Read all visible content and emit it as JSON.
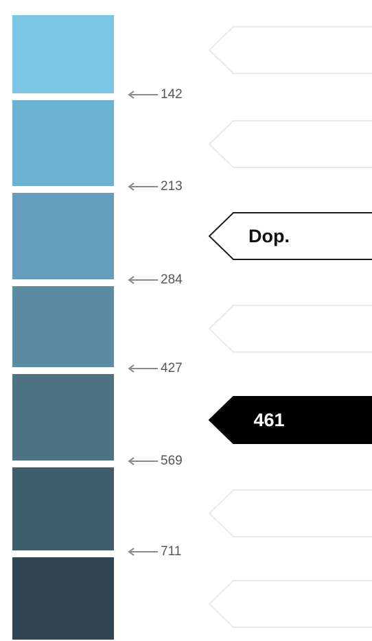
{
  "scale": {
    "bands": [
      {
        "color": "#7BC6E5"
      },
      {
        "color": "#6BB1D2"
      },
      {
        "color": "#649EBC"
      },
      {
        "color": "#5A8BA1"
      },
      {
        "color": "#4D7384"
      },
      {
        "color": "#3E5E6D"
      },
      {
        "color": "#304753"
      }
    ],
    "boundaries": [
      "142",
      "213",
      "284",
      "427",
      "569",
      "711"
    ]
  },
  "tags": [
    {
      "label": "",
      "style": "faint"
    },
    {
      "label": "",
      "style": "faint"
    },
    {
      "label": "Dop.",
      "style": "outline"
    },
    {
      "label": "",
      "style": "faint"
    },
    {
      "label": "461",
      "style": "filled"
    },
    {
      "label": "",
      "style": "faint"
    },
    {
      "label": "",
      "style": "faint"
    }
  ],
  "colors": {
    "arrow": "#8A8A8A",
    "faint_outline": "#E9E9E9",
    "outline": "#1A1A1A",
    "filled": "#000000"
  }
}
